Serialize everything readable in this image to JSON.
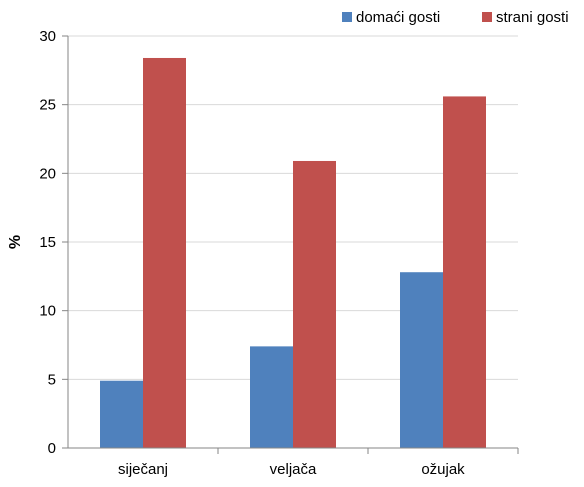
{
  "chart_data": {
    "type": "bar",
    "title": "",
    "xlabel": "",
    "ylabel": "%",
    "ylim": [
      0,
      30
    ],
    "yticks": [
      0,
      5,
      10,
      15,
      20,
      25,
      30
    ],
    "grid": true,
    "legend_position": "top-right",
    "categories": [
      "siječanj",
      "veljača",
      "ožujak"
    ],
    "series": [
      {
        "name": "domaći gosti",
        "color": "#4f81bd",
        "values": [
          4.9,
          7.4,
          12.8
        ]
      },
      {
        "name": "strani gosti",
        "color": "#c0504d",
        "values": [
          28.4,
          20.9,
          25.6
        ]
      }
    ]
  }
}
